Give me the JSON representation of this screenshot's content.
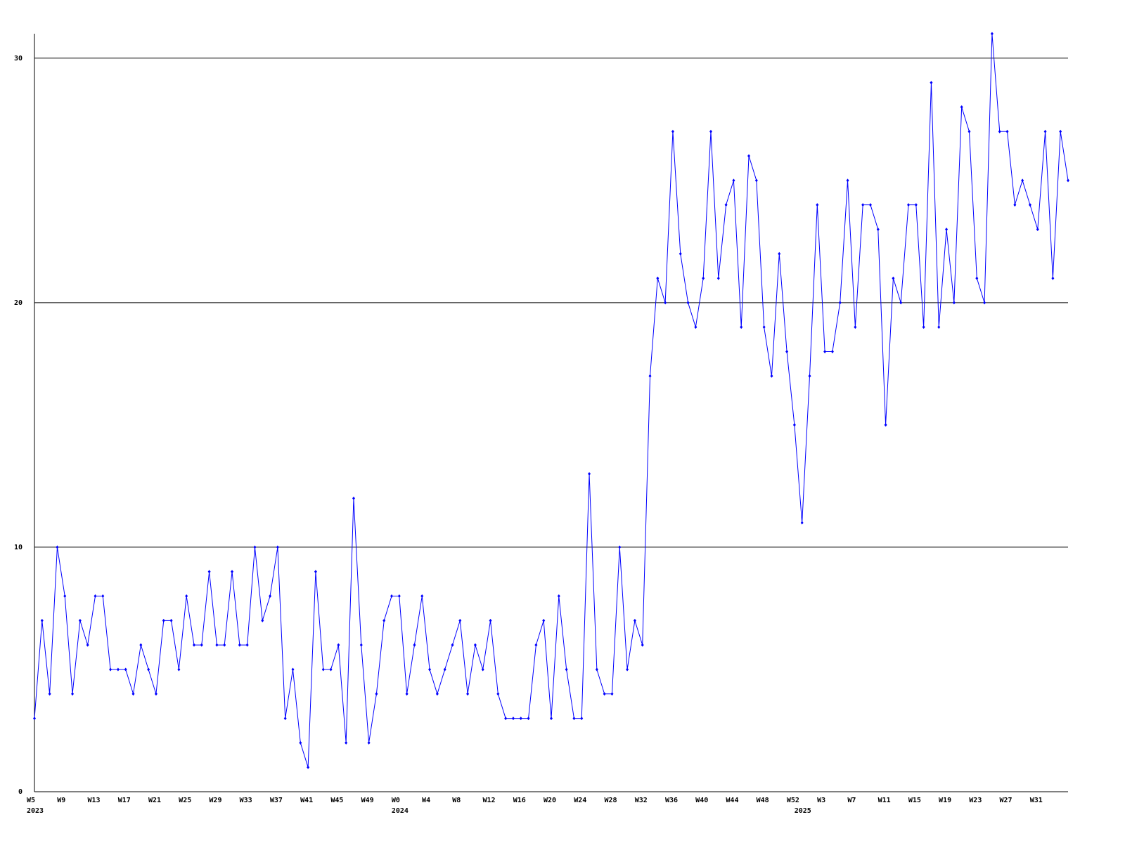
{
  "chart_data": {
    "type": "line",
    "color": "#0000ff",
    "grid": true,
    "ylim": [
      0,
      31
    ],
    "yticks": [
      0,
      10,
      20,
      30
    ],
    "categories": [
      "W5",
      null,
      null,
      null,
      "W9",
      null,
      null,
      null,
      "W13",
      null,
      null,
      null,
      "W17",
      null,
      null,
      null,
      "W21",
      null,
      null,
      null,
      "W25",
      null,
      null,
      null,
      "W29",
      null,
      null,
      null,
      "W33",
      null,
      null,
      null,
      "W37",
      null,
      null,
      null,
      "W41",
      null,
      null,
      null,
      "W45",
      null,
      null,
      null,
      "W49",
      null,
      null,
      null,
      "W0",
      null,
      null,
      null,
      "W4",
      null,
      null,
      null,
      "W8",
      null,
      null,
      null,
      "W12",
      null,
      null,
      null,
      "W16",
      null,
      null,
      null,
      "W20",
      null,
      null,
      null,
      "W24",
      null,
      null,
      null,
      "W28",
      null,
      null,
      null,
      "W32",
      null,
      null,
      null,
      "W36",
      null,
      null,
      null,
      "W40",
      null,
      null,
      null,
      "W44",
      null,
      null,
      null,
      "W48",
      null,
      null,
      null,
      "W52",
      null,
      null,
      null,
      "W3",
      null,
      null,
      null,
      "W7",
      null,
      null,
      null,
      "W11",
      null,
      null,
      null,
      "W15",
      null,
      null,
      null,
      "W19",
      null,
      null,
      null,
      "W23",
      null,
      null,
      null,
      "W27",
      null,
      null,
      null,
      "W31",
      null,
      null,
      null,
      null
    ],
    "category_years": [
      "2023",
      null,
      null,
      null,
      null,
      null,
      null,
      null,
      null,
      null,
      null,
      null,
      null,
      null,
      null,
      null,
      null,
      null,
      null,
      null,
      null,
      null,
      null,
      null,
      null,
      null,
      null,
      null,
      null,
      null,
      null,
      null,
      null,
      null,
      null,
      null,
      null,
      null,
      null,
      null,
      null,
      null,
      null,
      null,
      null,
      null,
      null,
      null,
      "2024",
      null,
      null,
      null,
      null,
      null,
      null,
      null,
      null,
      null,
      null,
      null,
      null,
      null,
      null,
      null,
      null,
      null,
      null,
      null,
      null,
      null,
      null,
      null,
      null,
      null,
      null,
      null,
      null,
      null,
      null,
      null,
      null,
      null,
      null,
      null,
      null,
      null,
      null,
      null,
      null,
      null,
      null,
      null,
      null,
      null,
      null,
      null,
      null,
      null,
      null,
      null,
      null,
      "2025",
      null,
      null,
      null,
      null,
      null,
      null,
      null,
      null,
      null,
      null,
      null,
      null,
      null,
      null,
      null,
      null,
      null,
      null,
      null,
      null,
      null,
      null,
      null,
      null,
      null,
      null,
      null,
      null,
      null,
      null,
      null,
      null,
      null,
      null
    ],
    "values": [
      3,
      7,
      4,
      10,
      8,
      4,
      7,
      6,
      8,
      8,
      5,
      5,
      5,
      4,
      6,
      5,
      4,
      7,
      7,
      5,
      8,
      6,
      6,
      9,
      6,
      6,
      9,
      6,
      6,
      10,
      7,
      8,
      10,
      3,
      5,
      2,
      1,
      9,
      5,
      5,
      6,
      2,
      12,
      6,
      2,
      4,
      7,
      8,
      8,
      4,
      6,
      8,
      5,
      4,
      5,
      6,
      7,
      4,
      6,
      5,
      7,
      4,
      3,
      3,
      3,
      3,
      6,
      7,
      3,
      8,
      5,
      3,
      3,
      13,
      5,
      4,
      4,
      10,
      5,
      7,
      6,
      17,
      21,
      20,
      27,
      22,
      20,
      19,
      21,
      27,
      21,
      24,
      25,
      19,
      26,
      25,
      19,
      17,
      22,
      18,
      15,
      11,
      17,
      24,
      18,
      18,
      20,
      25,
      19,
      24,
      24,
      23,
      15,
      21,
      20,
      24,
      24,
      19,
      29,
      19,
      23,
      20,
      28,
      27,
      21,
      20,
      31,
      27,
      27,
      24,
      25,
      24,
      23,
      27,
      21,
      27,
      25
    ]
  }
}
